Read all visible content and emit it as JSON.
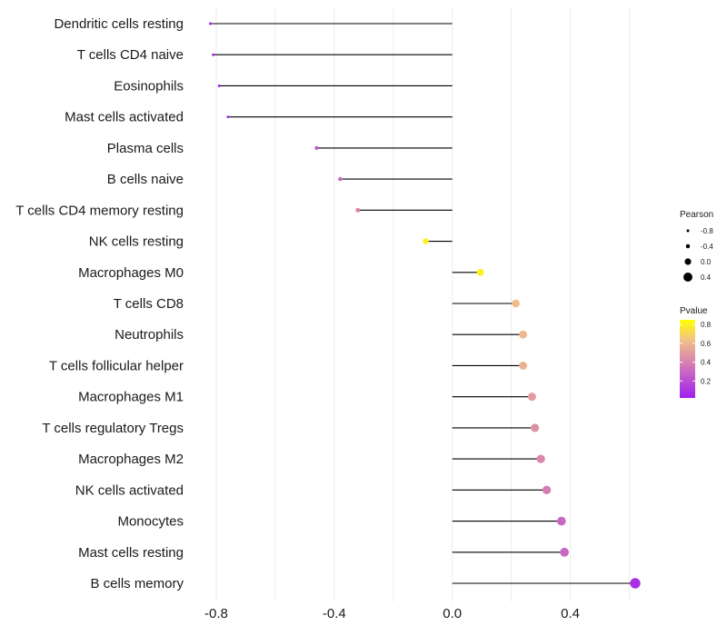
{
  "chart_data": {
    "type": "lollipop",
    "categories": [
      "Dendritic cells resting",
      "T cells CD4 naive",
      "Eosinophils",
      "Mast cells activated",
      "Plasma cells",
      "B cells naive",
      "T cells CD4 memory resting",
      "NK cells resting",
      "Macrophages M0",
      "T cells CD8",
      "Neutrophils",
      "T cells follicular helper",
      "Macrophages M1",
      "T cells regulatory  Tregs",
      "Macrophages M2",
      "NK cells activated",
      "Monocytes",
      "Mast cells resting",
      "B cells memory"
    ],
    "values": [
      -0.82,
      -0.81,
      -0.79,
      -0.76,
      -0.46,
      -0.38,
      -0.32,
      -0.09,
      0.095,
      0.215,
      0.24,
      0.24,
      0.27,
      0.28,
      0.3,
      0.32,
      0.37,
      0.38,
      0.62
    ],
    "pvalues": [
      0.02,
      0.02,
      0.03,
      0.05,
      0.22,
      0.32,
      0.42,
      0.8,
      0.8,
      0.62,
      0.6,
      0.58,
      0.5,
      0.46,
      0.42,
      0.38,
      0.3,
      0.3,
      0.08
    ],
    "xlim": [
      -0.88,
      0.66
    ],
    "x_ticks": [
      -0.8,
      -0.4,
      0.0,
      0.4
    ],
    "x_tick_labels": [
      "-0.8",
      "-0.4",
      "0.0",
      "0.4"
    ],
    "size_legend": {
      "title": "Pearson",
      "values": [
        -0.8,
        -0.4,
        0.0,
        0.4
      ],
      "labels": [
        "-0.8",
        "-0.4",
        "0.0",
        "0.4"
      ]
    },
    "color_legend": {
      "title": "Pvalue",
      "range": [
        0.02,
        0.85
      ],
      "ticks": [
        0.2,
        0.4,
        0.6,
        0.8
      ],
      "tick_labels": [
        "0.2",
        "0.4",
        "0.6",
        "0.8"
      ],
      "low_color": "#a020f0",
      "mid_color": "#d77fb3",
      "high_color": "#ffff00"
    },
    "grid": true,
    "stem_color": "#000000"
  }
}
